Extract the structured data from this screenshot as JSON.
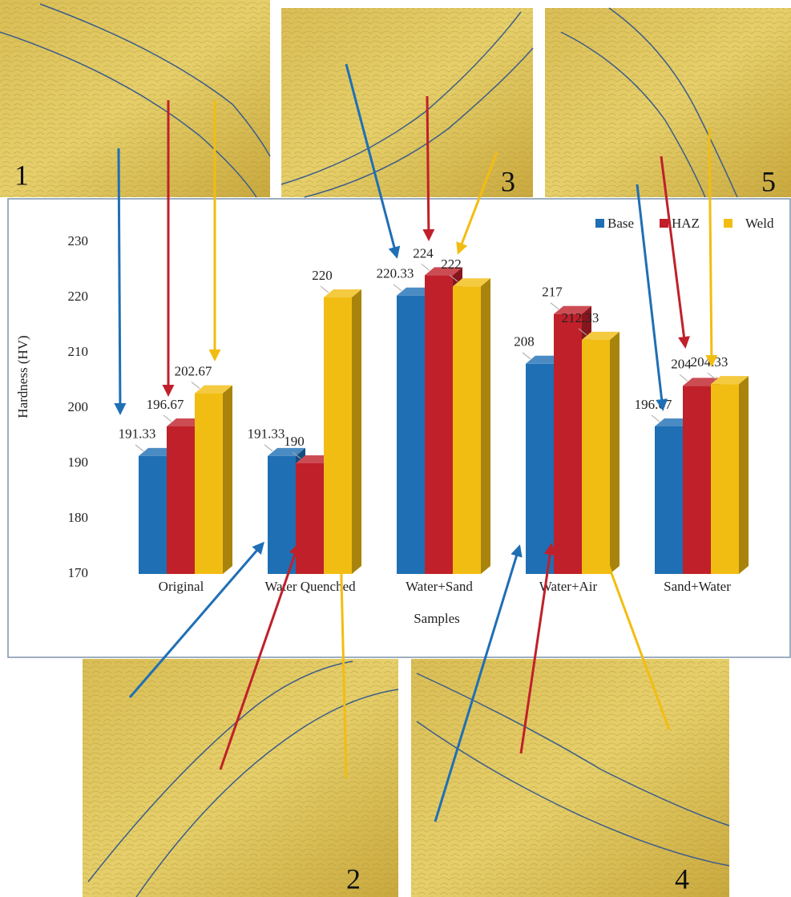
{
  "chart_data": {
    "type": "bar3d",
    "x_label": "Samples",
    "y_label": "Hardness (HV)",
    "categories": [
      "Original",
      "Water Quenched",
      "Water+Sand",
      "Water+Air",
      "Sand+Water"
    ],
    "series": [
      {
        "name": "Base",
        "color": "#1f6fb5",
        "values": [
          191.33,
          191.33,
          220.33,
          208,
          196.67
        ]
      },
      {
        "name": "HAZ",
        "color": "#c0202a",
        "values": [
          196.67,
          190,
          224,
          217,
          204
        ]
      },
      {
        "name": "Weld",
        "color": "#f2bd12",
        "values": [
          202.67,
          220,
          222,
          212.33,
          204.33
        ]
      }
    ],
    "ylim": [
      170,
      238
    ],
    "yticks": [
      170,
      180,
      190,
      200,
      210,
      220,
      230
    ],
    "grid": false,
    "legend": "top-right"
  },
  "micrographs": [
    "1",
    "2",
    "3",
    "4",
    "5"
  ]
}
